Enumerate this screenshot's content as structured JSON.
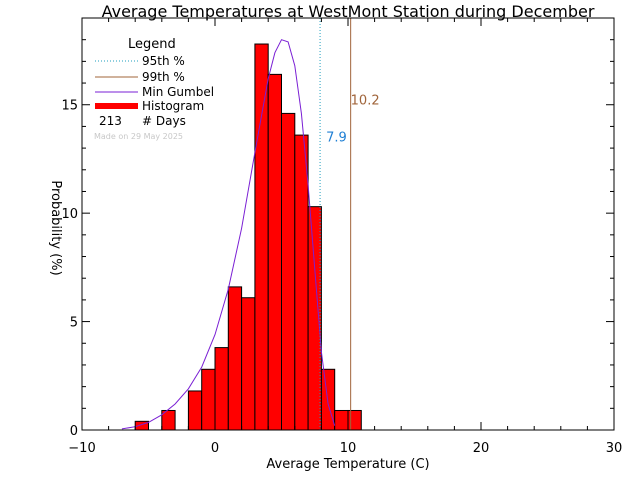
{
  "chart_data": {
    "type": "bar",
    "title": "Average Temperatures at WestMont Station during December",
    "xlabel": "Average Temperature (C)",
    "ylabel": "Probability (%)",
    "xlim": [
      -10,
      30
    ],
    "ylim": [
      0,
      19
    ],
    "xticks": [
      -10,
      0,
      10,
      20,
      30
    ],
    "yticks": [
      0,
      5,
      10,
      15
    ],
    "histogram": {
      "bin_edges": [
        -6,
        -5,
        -4,
        -3,
        -2,
        -1,
        0,
        1,
        2,
        3,
        4,
        5,
        6,
        7,
        8,
        9,
        10,
        11
      ],
      "values": [
        0.4,
        0,
        0.9,
        0,
        1.8,
        2.8,
        3.8,
        6.6,
        6.1,
        17.8,
        16.4,
        14.6,
        13.6,
        10.3,
        2.8,
        0.9,
        0.9
      ]
    },
    "gumbel_curve": {
      "x": [
        -7.0,
        -6.0,
        -5.0,
        -4.0,
        -3.0,
        -2.0,
        -1.0,
        0.0,
        1.0,
        2.0,
        3.0,
        4.0,
        4.5,
        5.0,
        5.5,
        6.0,
        6.5,
        7.0,
        7.5,
        8.0,
        8.5,
        9.0
      ],
      "y": [
        0.05,
        0.15,
        0.35,
        0.7,
        1.2,
        1.9,
        2.9,
        4.4,
        6.5,
        9.3,
        12.8,
        16.2,
        17.4,
        18.0,
        17.9,
        16.8,
        14.6,
        11.3,
        7.4,
        3.6,
        1.2,
        0.2
      ]
    },
    "percentile_95": {
      "label": "7.9",
      "value": 7.9,
      "color": "#1f7fd4"
    },
    "percentile_99": {
      "label": "10.2",
      "value": 10.2,
      "color": "#a0643a"
    },
    "legend": {
      "title": "Legend",
      "placement": "top-left",
      "items": [
        {
          "label": "95th %",
          "style": "dotted",
          "color": "#1f9fbf"
        },
        {
          "label": "99th %",
          "style": "solid",
          "color": "#a0643a"
        },
        {
          "label": "Min Gumbel",
          "style": "solid",
          "color": "#7a1fd4"
        },
        {
          "label": "Histogram",
          "style": "thick",
          "color": "#ff0000"
        }
      ],
      "days_count": "213",
      "days_label": "# Days",
      "made_on": "Made on 29 May 2025"
    },
    "colors": {
      "bars": "#ff0000",
      "bar_outline": "#000000",
      "curve": "#7a1fd4"
    }
  }
}
